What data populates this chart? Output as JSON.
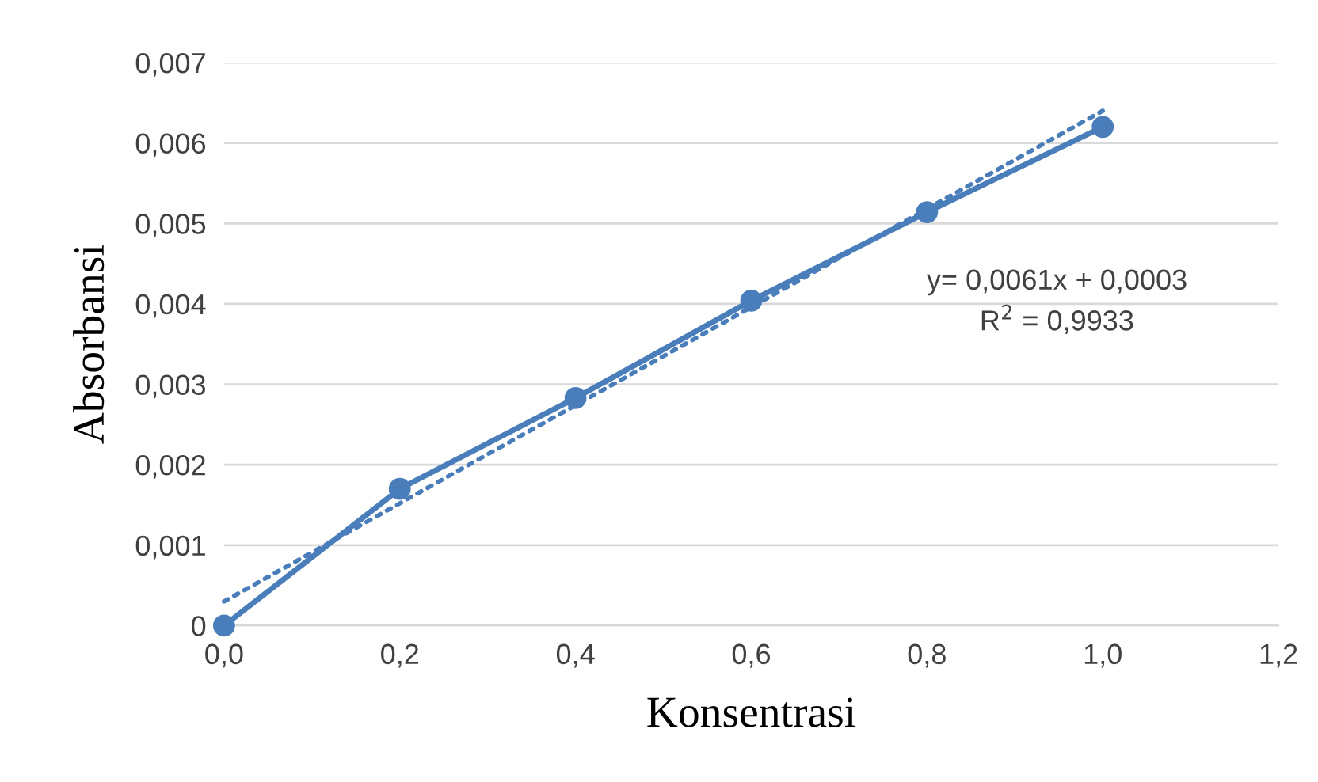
{
  "chart_data": {
    "type": "line",
    "xlabel": "Konsentrasi",
    "ylabel": "Absorbansi",
    "x": [
      0,
      0.2,
      0.4,
      0.6,
      0.8,
      1.0
    ],
    "series": [
      {
        "color": "#4a7ebb",
        "values": [
          0,
          0.0017,
          0.00283,
          0.00404,
          0.00514,
          0.0062
        ],
        "marker": "circle",
        "line_style": "solid"
      },
      {
        "type": "line",
        "color": "#4a7ebb",
        "x": [
          0,
          1.0
        ],
        "values": [
          0.0003,
          0.0064
        ],
        "marker": "none",
        "line_style": "dotted"
      }
    ],
    "xlim": [
      0,
      1.2
    ],
    "xticks": [
      {
        "value": 0,
        "label": "0,0"
      },
      {
        "value": 0.2,
        "label": "0,2"
      },
      {
        "value": 0.4,
        "label": "0,4"
      },
      {
        "value": 0.6,
        "label": "0,6"
      },
      {
        "value": 0.8,
        "label": "0,8"
      },
      {
        "value": 1.0,
        "label": "1,0"
      },
      {
        "value": 1.2,
        "label": "1,2"
      }
    ],
    "ylim": [
      0,
      0.007
    ],
    "yticks": [
      0,
      {
        "value": 0.001,
        "label": "0,001"
      },
      {
        "value": 0.002,
        "label": "0,002"
      },
      {
        "value": 0.003,
        "label": "0,003"
      },
      {
        "value": 0.004,
        "label": "0,004"
      },
      {
        "value": 0.005,
        "label": "0,005"
      },
      {
        "value": 0.006,
        "label": "0,006"
      },
      {
        "value": 0.007,
        "label": "0,007"
      }
    ],
    "grid": "y",
    "legend": false,
    "annotations": [
      "y= 0,0061x + 0,0003",
      "R$^{2}$ = 0,9933"
    ]
  }
}
